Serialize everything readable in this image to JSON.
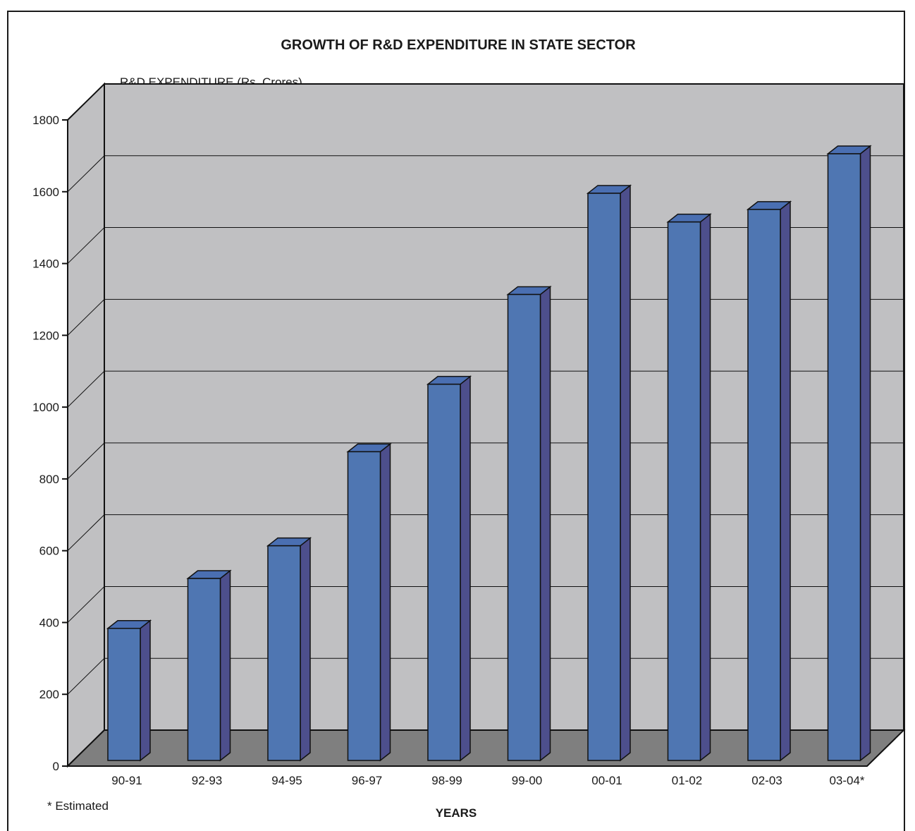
{
  "chart_data": {
    "type": "bar",
    "title": "GROWTH OF R&D EXPENDITURE IN STATE SECTOR",
    "ylabel": "R&D EXPENDITURE (Rs. Crores)",
    "xlabel": "YEARS",
    "note": "* Estimated",
    "categories": [
      "90-91",
      "92-93",
      "94-95",
      "96-97",
      "98-99",
      "99-00",
      "00-01",
      "01-02",
      "02-03",
      "03-04*"
    ],
    "values": [
      368,
      507,
      598,
      860,
      1048,
      1298,
      1580,
      1500,
      1535,
      1690
    ],
    "ylim": [
      0,
      1800
    ],
    "yticks": [
      0,
      200,
      400,
      600,
      800,
      1000,
      1200,
      1400,
      1600,
      1800
    ],
    "grid": true,
    "colors": {
      "bar_front": "#4f76b2",
      "bar_side": "#4d4f8c",
      "bar_top": "#4a6fb2",
      "wall": "#c0c0c2",
      "floor": "#7f7f7f",
      "outline": "#111111"
    }
  }
}
